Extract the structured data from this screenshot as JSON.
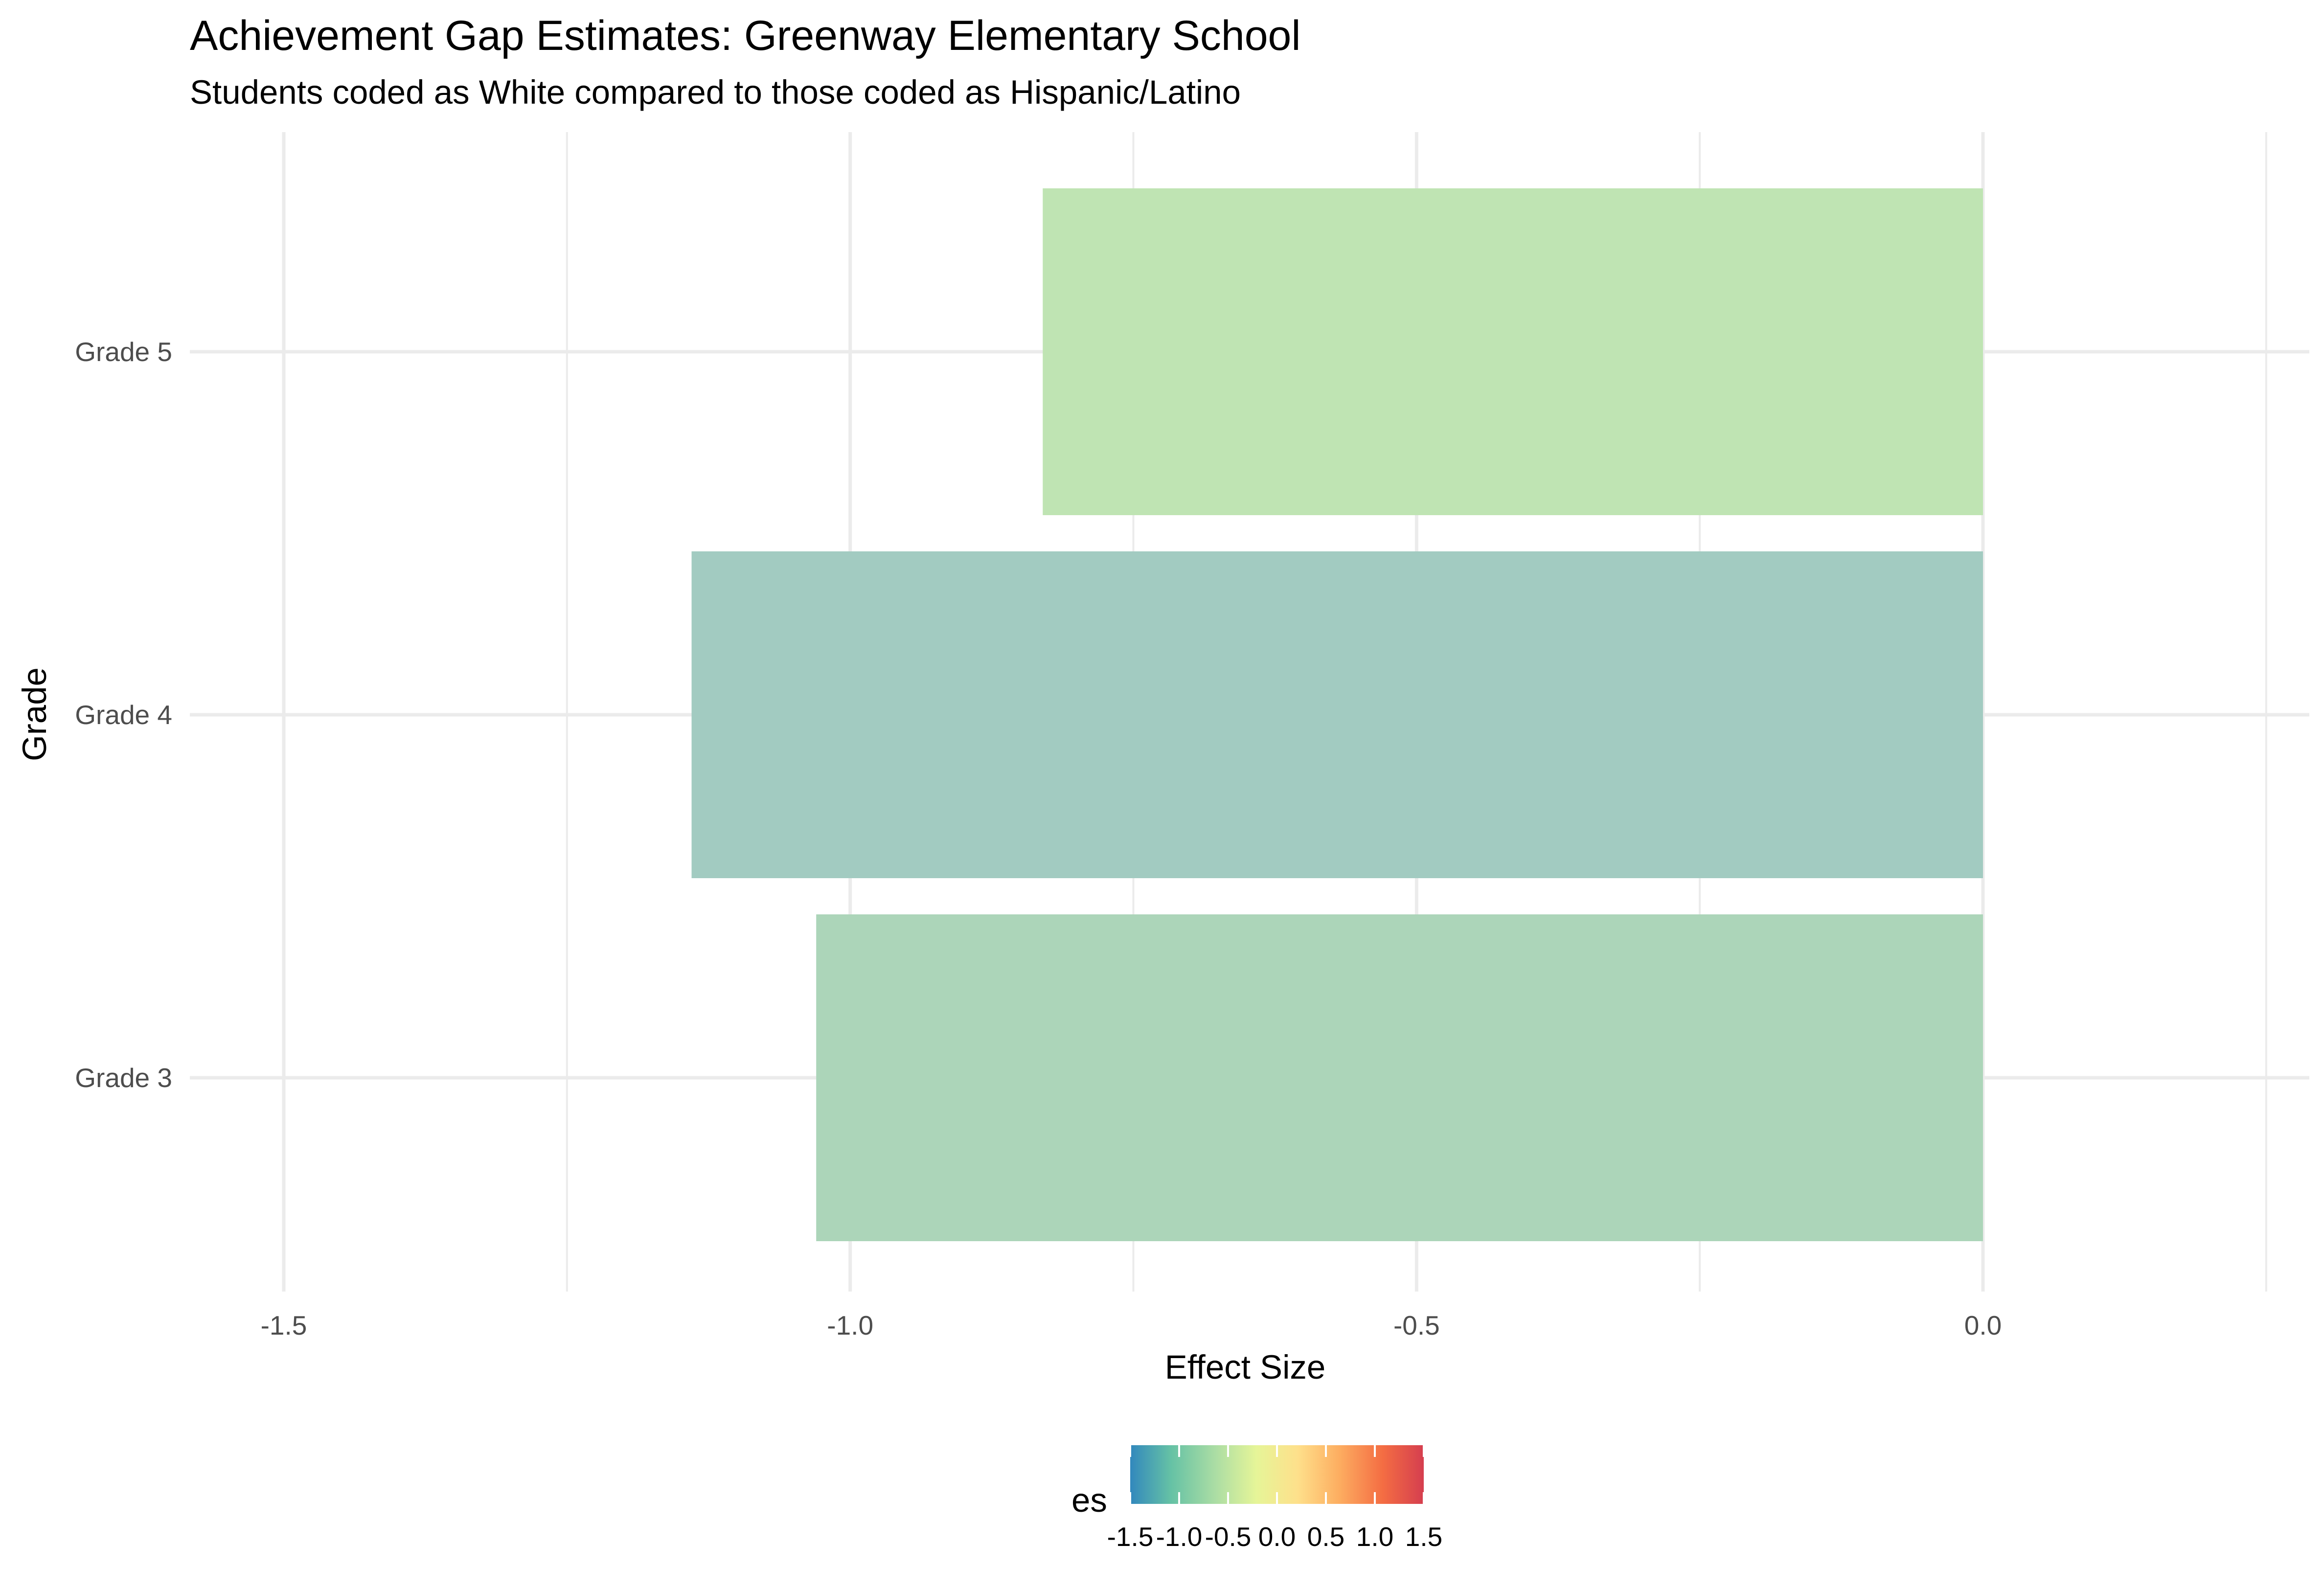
{
  "chart_data": {
    "type": "bar",
    "orientation": "horizontal",
    "title": "Achievement Gap Estimates: Greenway Elementary School",
    "subtitle": "Students coded as White compared to those coded as Hispanic/Latino",
    "xlabel": "Effect Size",
    "ylabel": "Grade",
    "categories": [
      "Grade 3",
      "Grade 4",
      "Grade 5"
    ],
    "values": [
      -1.03,
      -1.14,
      -0.83
    ],
    "bar_colors": [
      "#acd5b9",
      "#a2cbc1",
      "#bfe4b3"
    ],
    "xlim": [
      -1.7,
      0.28
    ],
    "xticks": [
      -1.5,
      -1.0,
      -0.5,
      0.0
    ],
    "xtick_labels": [
      "-1.5",
      "-1.0",
      "-0.5",
      "0.0"
    ],
    "grid": true,
    "legend": {
      "title": "es",
      "placement": "bottom",
      "type": "colorbar",
      "range": [
        -1.5,
        1.5
      ],
      "ticks": [
        -1.5,
        -1.0,
        -0.5,
        0.0,
        0.5,
        1.0,
        1.5
      ],
      "tick_labels": [
        "-1.5",
        "-1.0",
        "-0.5",
        "0.0",
        "0.5",
        "1.0",
        "1.5"
      ],
      "palette": [
        "#3288bd",
        "#66c2a5",
        "#abdda4",
        "#e6f598",
        "#fee08b",
        "#fdae61",
        "#f46d43",
        "#d53e4f"
      ]
    }
  }
}
